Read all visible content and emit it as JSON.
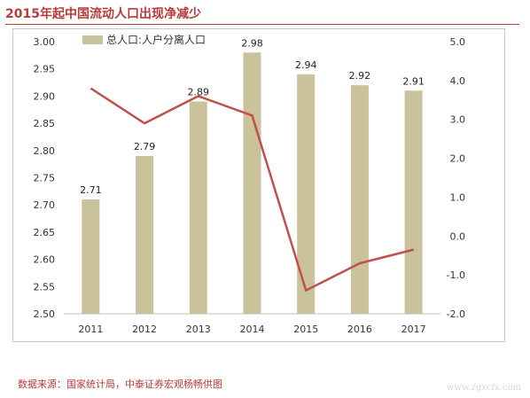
{
  "header": {
    "title": "2015年起中国流动人口出现净减少"
  },
  "footer": {
    "source": "数据来源：国家统计局，中泰证券宏观杨畅供图",
    "watermark": "www.zgxcfx.com"
  },
  "colors": {
    "bar": "#c9c29a",
    "line": "#c0504d",
    "title": "#b83a3a"
  },
  "chart_data": {
    "type": "bar",
    "title": "",
    "categories": [
      "2011",
      "2012",
      "2013",
      "2014",
      "2015",
      "2016",
      "2017"
    ],
    "series": [
      {
        "name": "总人口:人户分离人口",
        "type": "bar",
        "axis": "left",
        "values": [
          2.71,
          2.79,
          2.89,
          2.98,
          2.94,
          2.92,
          2.91
        ],
        "labels": [
          "2.71",
          "2.79",
          "2.89",
          "2.98",
          "2.94",
          "2.92",
          "2.91"
        ]
      },
      {
        "type": "line",
        "axis": "right",
        "values": [
          3.8,
          2.9,
          3.6,
          3.1,
          -1.4,
          -0.7,
          -0.35
        ]
      }
    ],
    "ylim": [
      2.5,
      3.0
    ],
    "y_ticks": [
      "3.00",
      "2.95",
      "2.90",
      "2.85",
      "2.80",
      "2.75",
      "2.70",
      "2.65",
      "2.60",
      "2.55",
      "2.50"
    ],
    "y2lim": [
      -2.0,
      5.0
    ],
    "y2_ticks": [
      "5.0",
      "4.0",
      "3.0",
      "2.0",
      "1.0",
      "0.0",
      "-1.0",
      "-2.0"
    ],
    "legend": "top-left",
    "grid": false
  }
}
